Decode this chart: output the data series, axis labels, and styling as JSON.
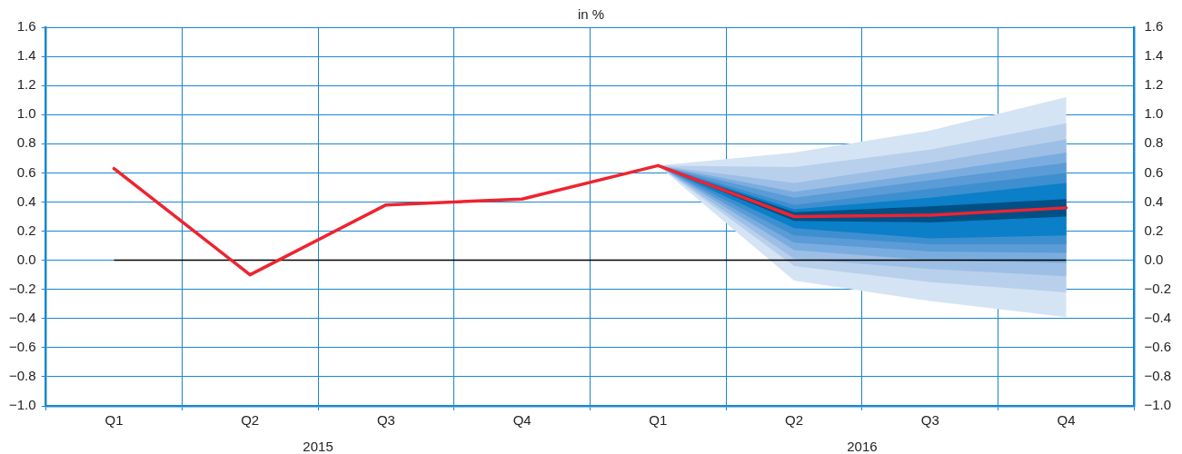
{
  "chart_data": {
    "type": "line",
    "subtitle": "in %",
    "categories": [
      "Q1",
      "Q2",
      "Q3",
      "Q4",
      "Q1",
      "Q2",
      "Q3",
      "Q4"
    ],
    "annotations": [
      "2015",
      "2016"
    ],
    "series": [
      {
        "type": "line",
        "color": "#ee2430",
        "values": [
          0.63,
          -0.1,
          0.38,
          0.42,
          0.65,
          0.3,
          0.31,
          0.36
        ]
      },
      {
        "color": "#d4e4f4",
        "values": [
          null,
          null,
          null,
          null,
          null,
          null,
          null,
          null
        ],
        "lower": [
          null,
          null,
          null,
          null,
          0.65,
          -0.14,
          -0.28,
          -0.39
        ],
        "upper": [
          null,
          null,
          null,
          null,
          0.65,
          0.74,
          0.89,
          1.12
        ]
      },
      {
        "color": "#b9d0ec",
        "values": [
          null,
          null,
          null,
          null,
          null,
          null,
          null,
          null
        ],
        "lower": [
          null,
          null,
          null,
          null,
          0.65,
          -0.04,
          -0.15,
          -0.22
        ],
        "upper": [
          null,
          null,
          null,
          null,
          0.65,
          0.64,
          0.76,
          0.94
        ]
      },
      {
        "color": "#9dbfe6",
        "values": [
          null,
          null,
          null,
          null,
          null,
          null,
          null,
          null
        ],
        "lower": [
          null,
          null,
          null,
          null,
          0.65,
          0.01,
          -0.06,
          -0.11
        ],
        "upper": [
          null,
          null,
          null,
          null,
          0.65,
          0.53,
          0.67,
          0.83
        ]
      },
      {
        "color": "#7aaddf",
        "values": [
          null,
          null,
          null,
          null,
          null,
          null,
          null,
          null
        ],
        "lower": [
          null,
          null,
          null,
          null,
          0.65,
          0.07,
          0.0,
          -0.02
        ],
        "upper": [
          null,
          null,
          null,
          null,
          0.65,
          0.47,
          0.6,
          0.74
        ]
      },
      {
        "color": "#5b9bd6",
        "values": [
          null,
          null,
          null,
          null,
          null,
          null,
          null,
          null
        ],
        "lower": [
          null,
          null,
          null,
          null,
          0.65,
          0.12,
          0.06,
          0.05
        ],
        "upper": [
          null,
          null,
          null,
          null,
          0.65,
          0.43,
          0.55,
          0.67
        ]
      },
      {
        "color": "#3e8fcf",
        "values": [
          null,
          null,
          null,
          null,
          null,
          null,
          null,
          null
        ],
        "lower": [
          null,
          null,
          null,
          null,
          0.65,
          0.17,
          0.11,
          0.11
        ],
        "upper": [
          null,
          null,
          null,
          null,
          0.65,
          0.38,
          0.49,
          0.6
        ]
      },
      {
        "color": "#0b7fc8",
        "values": [
          null,
          null,
          null,
          null,
          null,
          null,
          null,
          null
        ],
        "lower": [
          null,
          null,
          null,
          null,
          0.65,
          0.22,
          0.15,
          0.17
        ],
        "upper": [
          null,
          null,
          null,
          null,
          0.65,
          0.35,
          0.43,
          0.53
        ]
      },
      {
        "color": "#004f85",
        "values": [
          null,
          null,
          null,
          null,
          null,
          null,
          null,
          null
        ],
        "lower": [
          null,
          null,
          null,
          null,
          0.65,
          0.27,
          0.26,
          0.3
        ],
        "upper": [
          null,
          null,
          null,
          null,
          0.65,
          0.33,
          0.37,
          0.42
        ]
      }
    ],
    "ref_lines": [
      {
        "axis": "y",
        "value": 0,
        "color": "#000000"
      }
    ],
    "ylim": [
      -1.0,
      1.6
    ],
    "yticks": [
      {
        "value": -1.0,
        "label": "−1.0"
      },
      -0.8,
      -0.6,
      -0.4,
      -0.2,
      {
        "value": 0.0,
        "label": "0.0"
      },
      0.2,
      0.4,
      0.6,
      0.8,
      {
        "value": 1.0,
        "label": "1.0"
      },
      1.2,
      1.4,
      1.6
    ],
    "y2lim": [
      -1.0,
      1.6
    ],
    "y2ticks": [
      {
        "value": -1.0,
        "label": "−1.0"
      },
      -0.8,
      -0.6,
      -0.4,
      -0.2,
      {
        "value": 0.0,
        "label": "0.0"
      },
      0.2,
      0.4,
      0.6,
      0.8,
      {
        "value": 1.0,
        "label": "1.0"
      },
      1.2,
      1.4,
      1.6
    ],
    "grid": true,
    "legend": false,
    "marker": "none",
    "line_style": "solid"
  }
}
